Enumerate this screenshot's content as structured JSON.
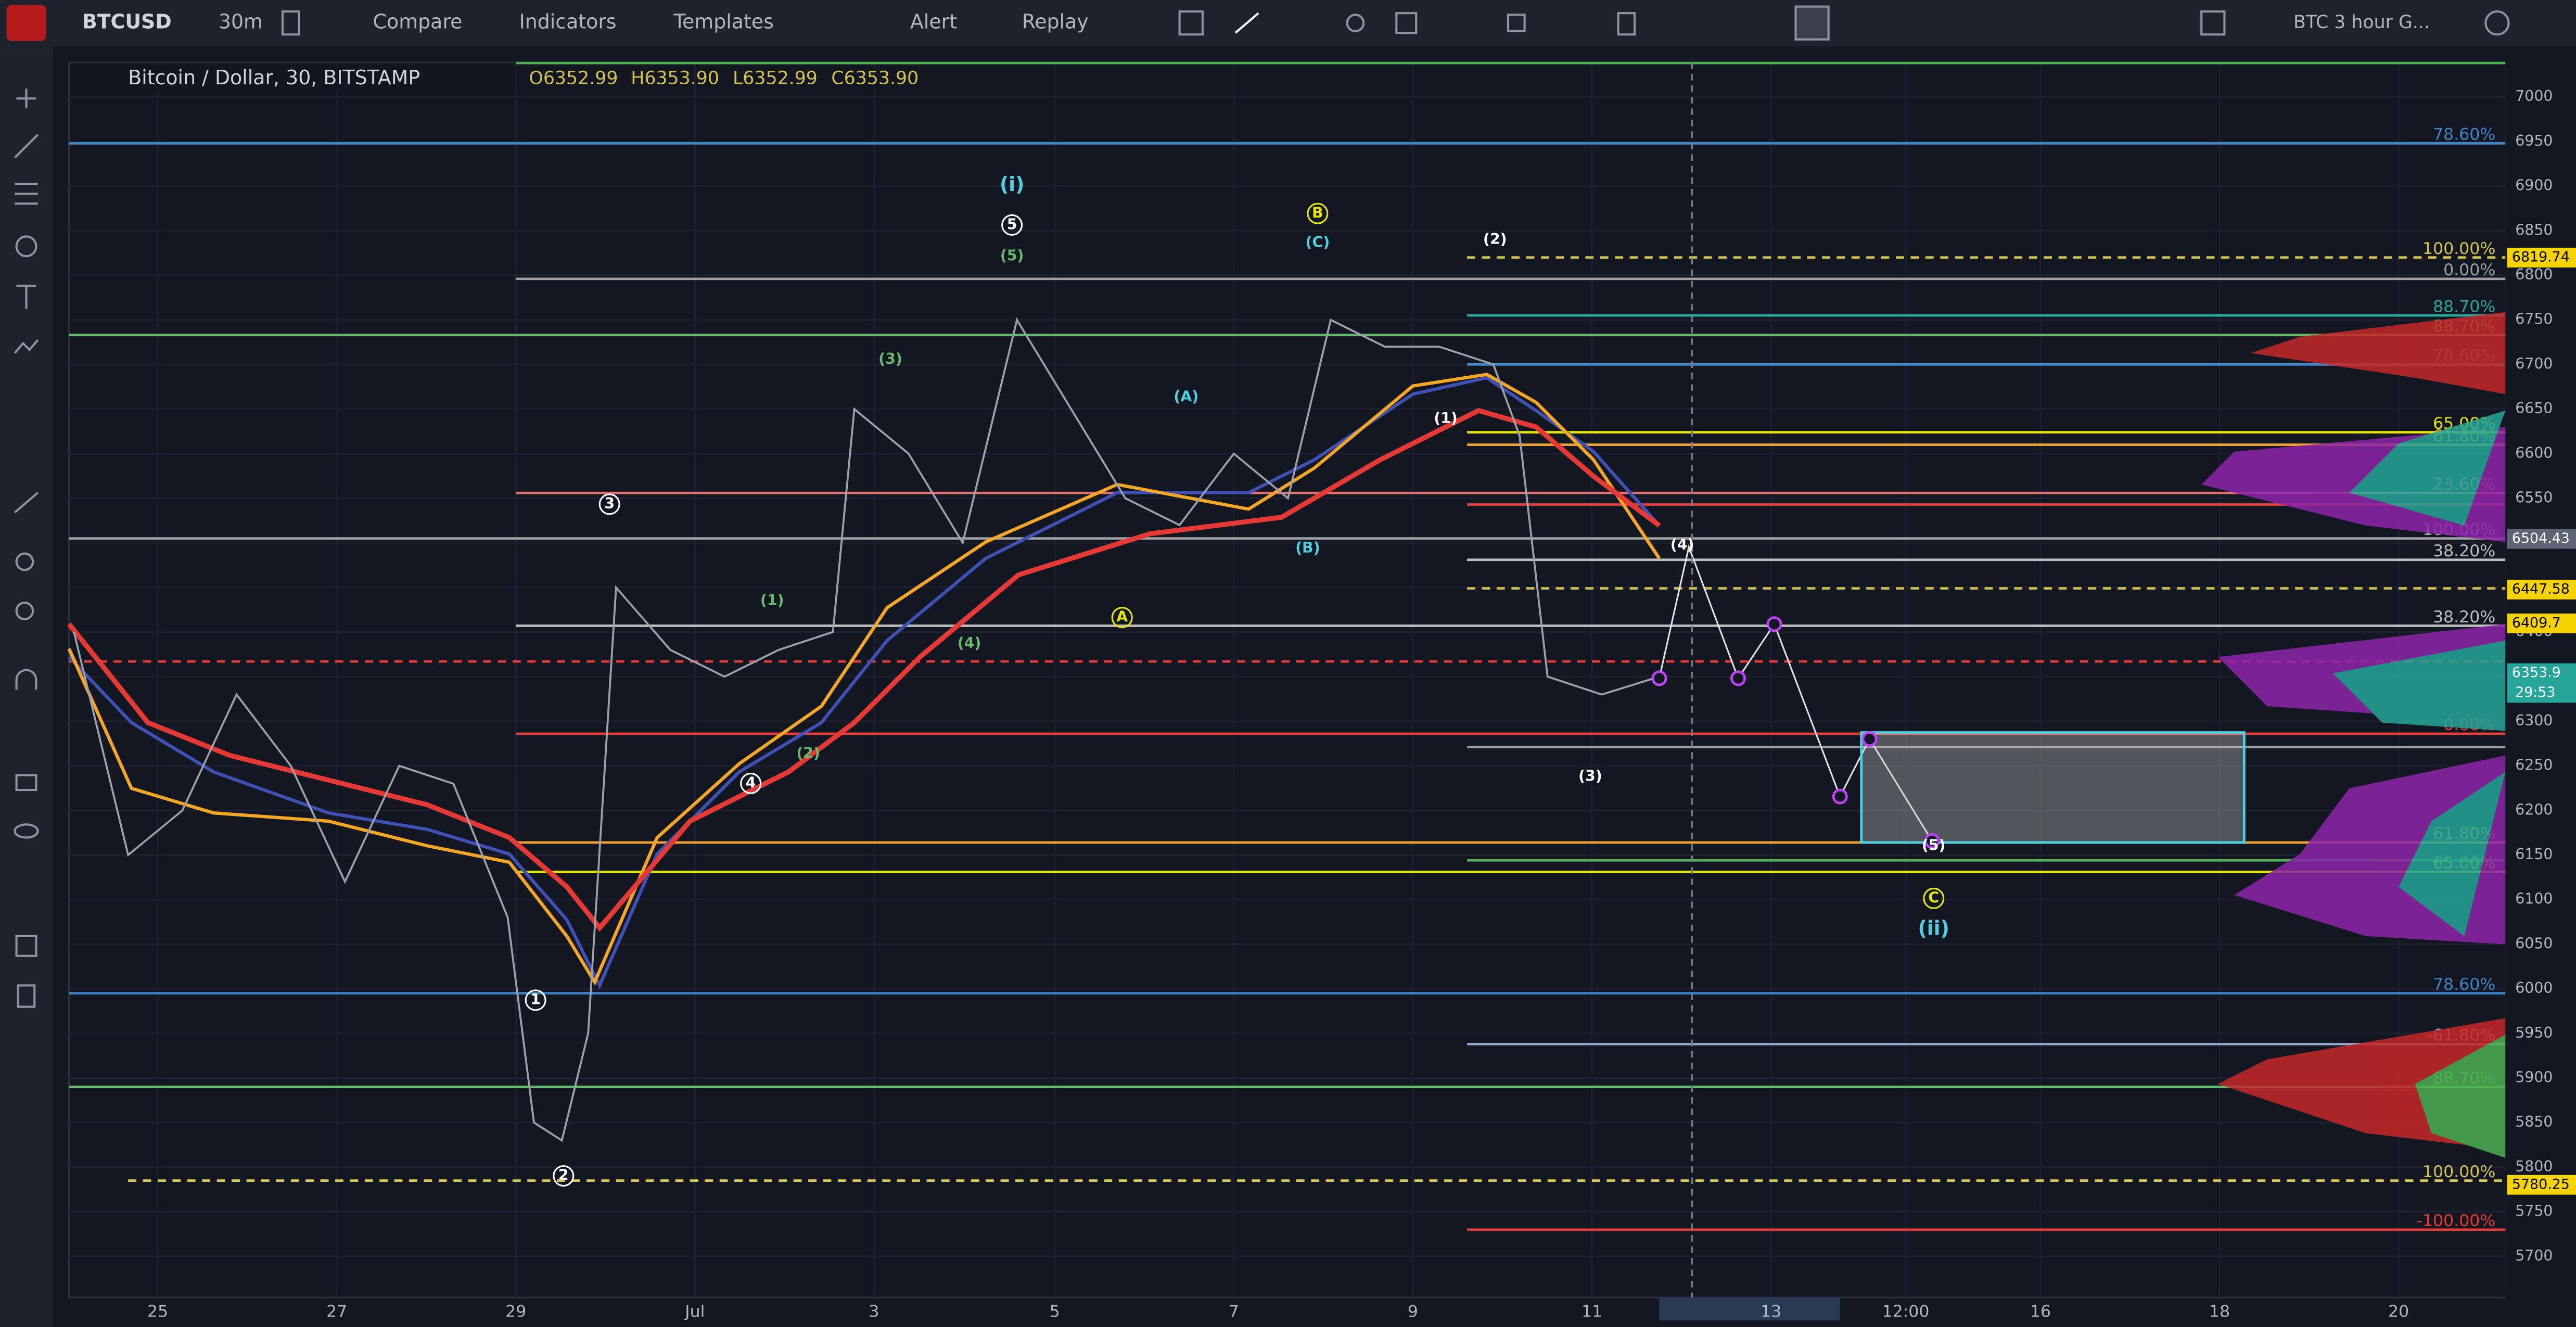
{
  "toolbar": {
    "symbol": "BTCUSD",
    "interval": "30m",
    "compare": "Compare",
    "indicators": "Indicators",
    "templates": "Templates",
    "alert": "Alert",
    "replay": "Replay",
    "layout": "BTC 3 hour G..."
  },
  "chart": {
    "title": "Bitcoin / Dollar, 30, BITSTAMP",
    "ohlc": [
      "O6352.99",
      "H6353.90",
      "L6352.99",
      "C6353.90"
    ],
    "price_ticks": [
      5700,
      5750,
      5800,
      5850,
      5900,
      5950,
      6000,
      6050,
      6100,
      6150,
      6200,
      6250,
      6300,
      6350,
      6400,
      6450,
      6500,
      6550,
      6600,
      6650,
      6700,
      6750,
      6800,
      6850,
      6900,
      6950,
      7000
    ],
    "time_labels": [
      "25",
      "27",
      "29",
      "Jul",
      "3",
      "5",
      "7",
      "9",
      "11",
      "13",
      "12:00",
      "16",
      "18",
      "20"
    ],
    "closes": [
      6400,
      6150,
      6200,
      6330,
      6250,
      6120,
      6250,
      6230,
      6080,
      5850,
      5830,
      5950,
      6450,
      6380,
      6350,
      6380,
      6400,
      6650,
      6600,
      6500,
      6750,
      6650,
      6550,
      6520,
      6600,
      6550,
      6750,
      6720,
      6720,
      6700,
      6620,
      6350,
      6330,
      6350
    ],
    "levels": [
      {
        "price": 7038,
        "color": "#4caf50"
      },
      {
        "price": 6948,
        "color": "#3d85c6",
        "label": "78.60%"
      },
      {
        "price": 6820,
        "color": "#d4c24a",
        "label": "100.00%"
      },
      {
        "price": 6796,
        "color": "#9e9e9e",
        "label": "0.00%"
      },
      {
        "price": 6755,
        "color": "#26a69a",
        "label": "88.70%"
      },
      {
        "price": 6733,
        "color": "#66bb6a",
        "label": "88.70%"
      },
      {
        "price": 6700,
        "color": "#3d85c6",
        "label": "78.60%"
      },
      {
        "price": 6624,
        "color": "#e6e600",
        "label": "65.00%"
      },
      {
        "price": 6610,
        "color": "#f0a030",
        "label": "61.80%"
      },
      {
        "price": 6556,
        "color": "#e57373",
        "label": "23.60%"
      },
      {
        "price": 6543,
        "color": "#e53935"
      },
      {
        "price": 6505,
        "color": "#9e9e9e",
        "label": "100.00%"
      },
      {
        "price": 6481,
        "color": "#bdbdbd",
        "label": "38.20%"
      },
      {
        "price": 6449,
        "color": "#d4c24a"
      },
      {
        "price": 6407,
        "color": "#bdbdbd",
        "label": "38.20%"
      },
      {
        "price": 6367,
        "color": "#e53935"
      },
      {
        "price": 6286,
        "color": "#e53935",
        "label": "0.00%"
      },
      {
        "price": 6271,
        "color": "#9e9e9e"
      },
      {
        "price": 6164,
        "color": "#f0a030",
        "label": "61.80%"
      },
      {
        "price": 6144,
        "color": "#4caf50"
      },
      {
        "price": 6131,
        "color": "#e6e600",
        "label": "65.00%"
      },
      {
        "price": 5995,
        "color": "#3d85c6",
        "label": "78.60%"
      },
      {
        "price": 5938,
        "color": "#90a4c8",
        "label": "-61.80%"
      },
      {
        "price": 5890,
        "color": "#66bb6a",
        "label": "88.70%"
      },
      {
        "price": 5785,
        "color": "#d4c24a",
        "label": "100.00%"
      },
      {
        "price": 5730,
        "color": "#e53935",
        "label": "-100.00%"
      }
    ],
    "price_tags": [
      {
        "value": 6819.74,
        "color": "#f5d300"
      },
      {
        "value": 6504.43,
        "color": "#5d6473"
      },
      {
        "value": 6447.58,
        "color": "#f5d300"
      },
      {
        "value": 6409.7,
        "color": "#f5d300"
      },
      {
        "value": 6353.9,
        "color": "#26a69a"
      },
      {
        "value": 5780.25,
        "color": "#f5d300"
      }
    ],
    "countdown": "29:53",
    "wave_labels": [
      "(i)",
      "5",
      "(5)",
      "(3)",
      "(1)",
      "(4)",
      "(2)",
      "4",
      "3",
      "1",
      "2",
      "(A)",
      "(B)",
      "A",
      "B",
      "(C)",
      "(2)",
      "(1)",
      "(3)",
      "(4)",
      "(5)",
      "C",
      "(ii)"
    ]
  }
}
